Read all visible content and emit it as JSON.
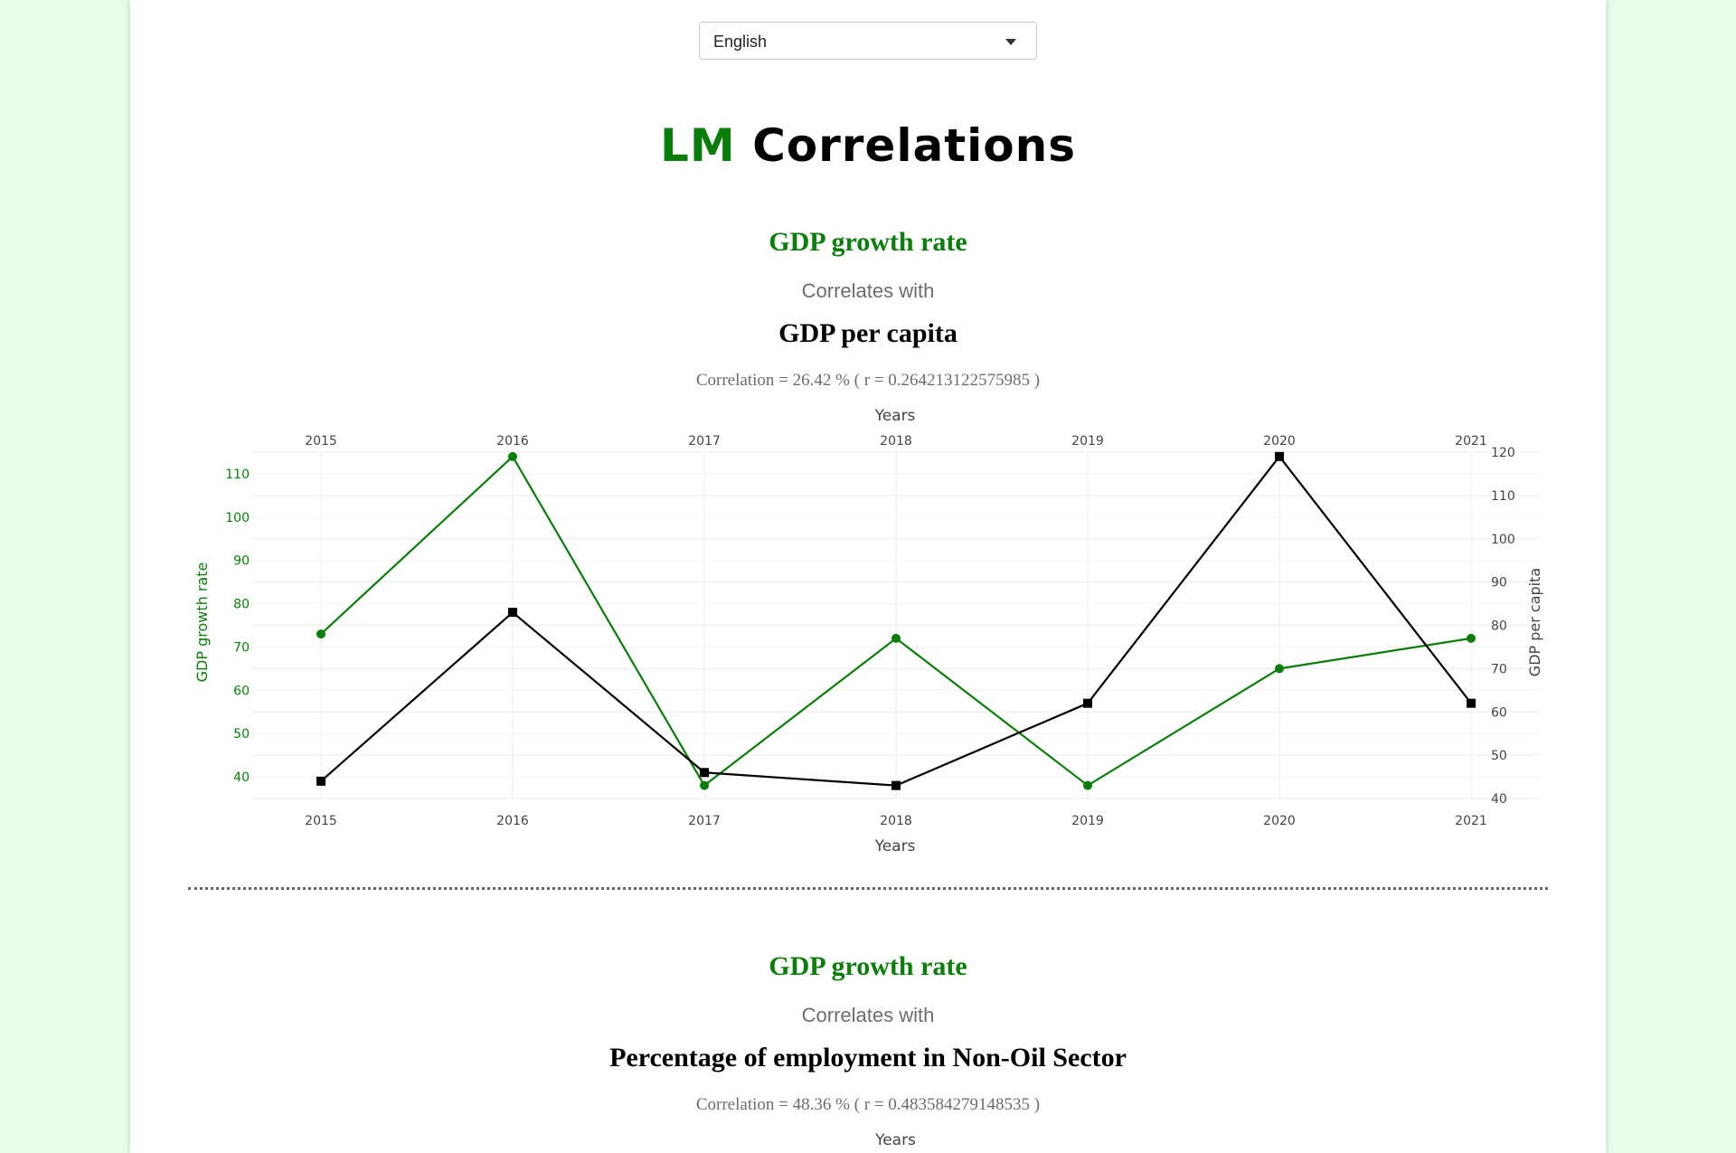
{
  "language_select": {
    "value": "English"
  },
  "page_title": {
    "accent": "LM",
    "rest": " Correlations"
  },
  "sections": [
    {
      "title_a": "GDP growth rate",
      "subtitle": "Correlates with",
      "title_b": "GDP per capita",
      "correlation_text": "Correlation = 26.42 % ( r = 0.264213122575985 )",
      "x_axis_title": "Years"
    },
    {
      "title_a": "GDP growth rate",
      "subtitle": "Correlates with",
      "title_b": "Percentage of employment in Non-Oil Sector",
      "correlation_text": "Correlation = 48.36 % ( r = 0.483584279148535 )",
      "x_axis_title": "Years"
    }
  ],
  "chart_data": {
    "type": "line",
    "x": [
      2015,
      2016,
      2017,
      2018,
      2019,
      2020,
      2021
    ],
    "xlabel": "Years",
    "series": [
      {
        "name": "GDP growth rate",
        "axis": "left",
        "color": "#0a7d0a",
        "marker": "circle",
        "values": [
          73,
          114,
          38,
          72,
          38,
          65,
          72
        ]
      },
      {
        "name": "GDP per capita",
        "axis": "right",
        "color": "#000000",
        "marker": "square",
        "values": [
          44,
          83,
          46,
          43,
          62,
          119,
          62
        ]
      }
    ],
    "y_left": {
      "label": "GDP growth rate",
      "ticks": [
        40,
        50,
        60,
        70,
        80,
        90,
        100,
        110
      ],
      "color": "#0a7d0a"
    },
    "y_right": {
      "label": "GDP per capita",
      "ticks": [
        40,
        50,
        60,
        70,
        80,
        90,
        100,
        110,
        120
      ],
      "color": "#444444"
    },
    "grid": true
  }
}
